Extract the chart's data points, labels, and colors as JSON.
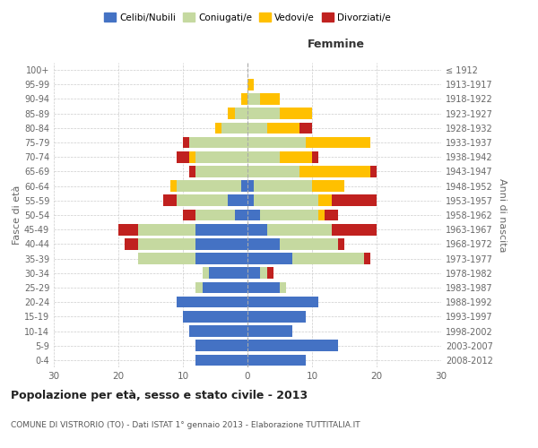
{
  "age_groups": [
    "0-4",
    "5-9",
    "10-14",
    "15-19",
    "20-24",
    "25-29",
    "30-34",
    "35-39",
    "40-44",
    "45-49",
    "50-54",
    "55-59",
    "60-64",
    "65-69",
    "70-74",
    "75-79",
    "80-84",
    "85-89",
    "90-94",
    "95-99",
    "100+"
  ],
  "birth_years": [
    "2008-2012",
    "2003-2007",
    "1998-2002",
    "1993-1997",
    "1988-1992",
    "1983-1987",
    "1978-1982",
    "1973-1977",
    "1968-1972",
    "1963-1967",
    "1958-1962",
    "1953-1957",
    "1948-1952",
    "1943-1947",
    "1938-1942",
    "1933-1937",
    "1928-1932",
    "1923-1927",
    "1918-1922",
    "1913-1917",
    "≤ 1912"
  ],
  "male": {
    "celibi": [
      8,
      8,
      9,
      10,
      11,
      7,
      6,
      8,
      8,
      8,
      2,
      3,
      1,
      0,
      0,
      0,
      0,
      0,
      0,
      0,
      0
    ],
    "coniugati": [
      0,
      0,
      0,
      0,
      0,
      1,
      1,
      9,
      9,
      9,
      6,
      8,
      10,
      8,
      8,
      9,
      4,
      2,
      0,
      0,
      0
    ],
    "vedovi": [
      0,
      0,
      0,
      0,
      0,
      0,
      0,
      0,
      0,
      0,
      0,
      0,
      1,
      0,
      1,
      0,
      1,
      1,
      1,
      0,
      0
    ],
    "divorziati": [
      0,
      0,
      0,
      0,
      0,
      0,
      0,
      0,
      2,
      3,
      2,
      2,
      0,
      1,
      2,
      1,
      0,
      0,
      0,
      0,
      0
    ]
  },
  "female": {
    "nubili": [
      9,
      14,
      7,
      9,
      11,
      5,
      2,
      7,
      5,
      3,
      2,
      1,
      1,
      0,
      0,
      0,
      0,
      0,
      0,
      0,
      0
    ],
    "coniugate": [
      0,
      0,
      0,
      0,
      0,
      1,
      1,
      11,
      9,
      10,
      9,
      10,
      9,
      8,
      5,
      9,
      3,
      5,
      2,
      0,
      0
    ],
    "vedove": [
      0,
      0,
      0,
      0,
      0,
      0,
      0,
      0,
      0,
      0,
      1,
      2,
      5,
      11,
      5,
      10,
      5,
      5,
      3,
      1,
      0
    ],
    "divorziate": [
      0,
      0,
      0,
      0,
      0,
      0,
      1,
      1,
      1,
      7,
      2,
      7,
      0,
      1,
      1,
      0,
      2,
      0,
      0,
      0,
      0
    ]
  },
  "colors": {
    "celibi_nubili": "#4472c4",
    "coniugati": "#c5d9a0",
    "vedovi": "#ffc000",
    "divorziati": "#c0211f"
  },
  "xlim": 30,
  "title": "Popolazione per età, sesso e stato civile - 2013",
  "subtitle": "COMUNE DI VISTRORIO (TO) - Dati ISTAT 1° gennaio 2013 - Elaborazione TUTTITALIA.IT",
  "ylabel_left": "Fasce di età",
  "ylabel_right": "Anni di nascita",
  "xlabel_right": "Femmine",
  "background_color": "#ffffff",
  "grid_color": "#cccccc"
}
